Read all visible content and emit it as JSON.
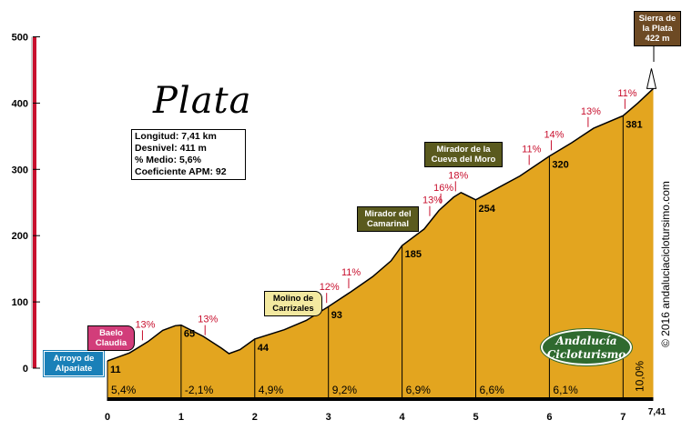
{
  "chart_data": {
    "type": "area",
    "title": "Plata",
    "stats": [
      "Longitud: 7,41 km",
      "Desnivel: 411 m",
      "% Medio: 5,6%",
      "Coeficiente APM: 92"
    ],
    "xlim": [
      0,
      7.41
    ],
    "ylim": [
      0,
      500
    ],
    "xticks": [
      "0",
      "1",
      "2",
      "3",
      "4",
      "5",
      "6",
      "7"
    ],
    "x_end_label": "7,41",
    "yticks": [
      "0",
      "100",
      "200",
      "300",
      "400",
      "500"
    ],
    "profile": [
      {
        "x": 0,
        "y": 11
      },
      {
        "x": 0.3,
        "y": 23
      },
      {
        "x": 0.55,
        "y": 40
      },
      {
        "x": 0.75,
        "y": 57
      },
      {
        "x": 0.92,
        "y": 64
      },
      {
        "x": 1.0,
        "y": 65
      },
      {
        "x": 1.3,
        "y": 48
      },
      {
        "x": 1.55,
        "y": 30
      },
      {
        "x": 1.65,
        "y": 22
      },
      {
        "x": 1.8,
        "y": 28
      },
      {
        "x": 2.0,
        "y": 44
      },
      {
        "x": 2.4,
        "y": 58
      },
      {
        "x": 2.7,
        "y": 72
      },
      {
        "x": 3.0,
        "y": 93
      },
      {
        "x": 3.3,
        "y": 115
      },
      {
        "x": 3.6,
        "y": 138
      },
      {
        "x": 3.85,
        "y": 162
      },
      {
        "x": 4.0,
        "y": 185
      },
      {
        "x": 4.3,
        "y": 210
      },
      {
        "x": 4.5,
        "y": 238
      },
      {
        "x": 4.7,
        "y": 258
      },
      {
        "x": 4.8,
        "y": 265
      },
      {
        "x": 5.0,
        "y": 254
      },
      {
        "x": 5.3,
        "y": 272
      },
      {
        "x": 5.6,
        "y": 290
      },
      {
        "x": 6.0,
        "y": 320
      },
      {
        "x": 6.3,
        "y": 340
      },
      {
        "x": 6.6,
        "y": 362
      },
      {
        "x": 7.0,
        "y": 381
      },
      {
        "x": 7.2,
        "y": 400
      },
      {
        "x": 7.41,
        "y": 422
      }
    ],
    "km_elevations": [
      {
        "x": 0,
        "label": "11"
      },
      {
        "x": 1,
        "label": "65"
      },
      {
        "x": 2,
        "label": "44"
      },
      {
        "x": 3,
        "label": "93"
      },
      {
        "x": 4,
        "label": "185"
      },
      {
        "x": 5,
        "label": "254"
      },
      {
        "x": 6,
        "label": "320"
      },
      {
        "x": 7,
        "label": "381"
      }
    ],
    "segment_gradients": [
      {
        "x": 0,
        "label": "5,4%"
      },
      {
        "x": 1,
        "label": "-2,1%"
      },
      {
        "x": 2,
        "label": "4,9%"
      },
      {
        "x": 3,
        "label": "9,2%"
      },
      {
        "x": 4,
        "label": "6,9%"
      },
      {
        "x": 5,
        "label": "6,6%"
      },
      {
        "x": 6,
        "label": "6,1%"
      },
      {
        "x": 7,
        "label": "10,0%"
      }
    ],
    "gradient_annotations": [
      {
        "x": 0.5,
        "label": "13%"
      },
      {
        "x": 1.35,
        "label": "13%"
      },
      {
        "x": 3.0,
        "label": "12%"
      },
      {
        "x": 3.3,
        "label": "11%"
      },
      {
        "x": 4.4,
        "label": "13%"
      },
      {
        "x": 4.55,
        "label": "16%"
      },
      {
        "x": 4.75,
        "label": "18%"
      },
      {
        "x": 5.75,
        "label": "11%"
      },
      {
        "x": 6.05,
        "label": "14%"
      },
      {
        "x": 6.55,
        "label": "13%"
      },
      {
        "x": 7.05,
        "label": "11%"
      }
    ],
    "waypoints": [
      {
        "name": "Arroyo de Alpariate",
        "style": "blue"
      },
      {
        "name": "Baelo Claudia",
        "style": "pink"
      },
      {
        "name": "Molino de Carrizales",
        "style": "yellow"
      },
      {
        "name": "Mirador del Camarinal",
        "style": "olive"
      },
      {
        "name": "Mirador de la Cueva del Moro",
        "style": "olive"
      },
      {
        "name": "Sierra de la Plata 422 m",
        "style": "brown"
      }
    ],
    "colors": {
      "fill": "#e3a51f",
      "stroke": "#000000",
      "axis_bar": "#c8102e",
      "gradient_text": "#c8102e"
    }
  },
  "watermark": "© 2016 andaluciaciclotursimo.com",
  "logo": {
    "line1": "Andalucía",
    "line2": "Cicloturismo"
  }
}
